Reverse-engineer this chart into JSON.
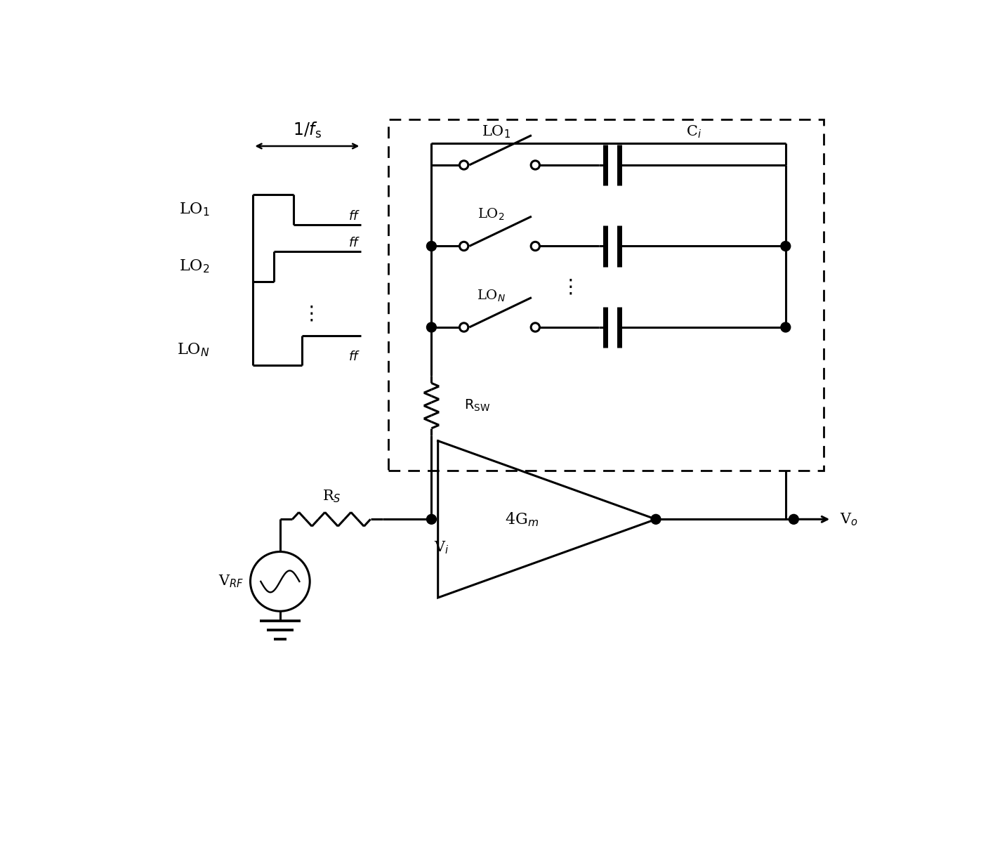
{
  "bg_color": "#ffffff",
  "line_color": "#000000",
  "lw": 2.2,
  "fig_width": 14.07,
  "fig_height": 12.33
}
